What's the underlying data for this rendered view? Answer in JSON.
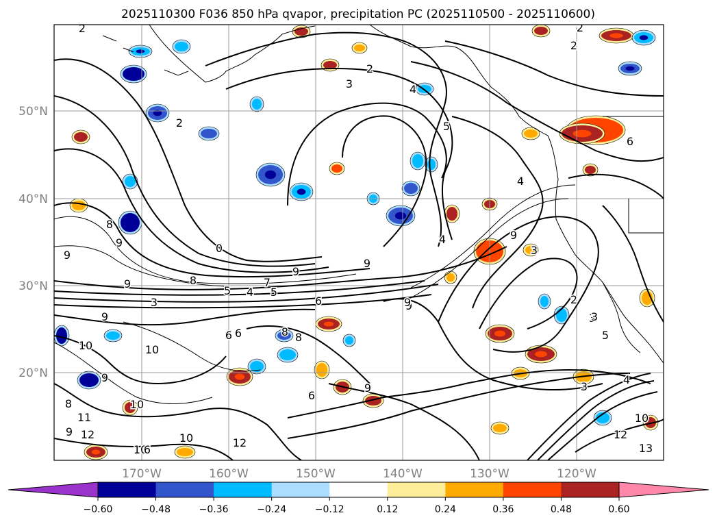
{
  "title": "2025110300 F036 850 hPa qvapor, precipitation PC (2025110500 - 2025110600)",
  "map": {
    "lat_labels": [
      "50°N",
      "40°N",
      "30°N",
      "20°N"
    ],
    "lon_labels": [
      "170°W",
      "160°W",
      "150°W",
      "140°W",
      "130°W",
      "120°W"
    ],
    "grid": true
  },
  "contour_labels": [
    "2",
    "2",
    "2",
    "2",
    "3",
    "4",
    "5",
    "2",
    "6",
    "4",
    "8",
    "9",
    "9",
    "0",
    "9",
    "8",
    "9",
    "7",
    "5",
    "4",
    "5",
    "3",
    "9",
    "6",
    "9",
    "6",
    "6",
    "8",
    "8",
    "9",
    "10",
    "10",
    "9",
    "10",
    "9",
    "11",
    "12",
    "9",
    "8",
    "10",
    "12",
    "10",
    "4",
    "3",
    "9",
    "9",
    "3",
    "2",
    "3",
    "5",
    "4",
    "3",
    "12",
    "10",
    "13",
    "6",
    "6"
  ],
  "colorbar": {
    "colors": [
      "#9933cc",
      "#000099",
      "#3355cc",
      "#00bbff",
      "#aaddff",
      "#ffffff",
      "#ffee99",
      "#ffaa00",
      "#ff4400",
      "#aa2222",
      "#ff88aa"
    ],
    "tick_labels": [
      "−0.60",
      "−0.48",
      "−0.36",
      "−0.24",
      "−0.12",
      "0.12",
      "0.24",
      "0.36",
      "0.48",
      "0.60"
    ],
    "extend": "both"
  }
}
